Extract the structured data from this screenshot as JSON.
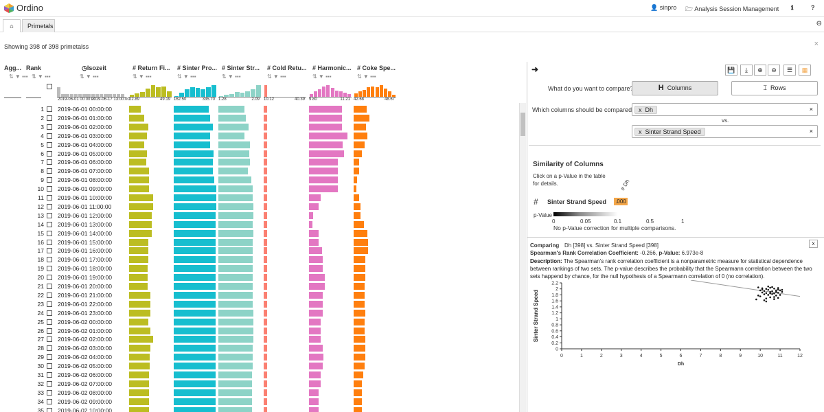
{
  "app": {
    "title": "Ordino",
    "user": "sinpro",
    "session": "Analysis Session Management",
    "info_icon": "info-icon",
    "help": "?"
  },
  "tabs": {
    "home_icon": "home-icon",
    "primetals": "Primetals"
  },
  "status": {
    "showing": "Showing 398 of 398 primetalss"
  },
  "columns": {
    "agg": "Agg...",
    "rank": "Rank",
    "isozeit": "Isozeit",
    "return": "Return Fi...",
    "sinter_prod": "Sinter Pro...",
    "sinter_str": "Sinter Str...",
    "cold_ret": "Cold Retu...",
    "harmonic": "Harmonic...",
    "coke": "Coke Spe...",
    "sub": "⇅ ▼ ▪▪▪"
  },
  "ranges": {
    "isozeit": [
      "2019-06-01 00:00:00",
      "2019-06-17 13:00:00"
    ],
    "return": [
      "22.89",
      "49.19"
    ],
    "sinter_prod": [
      "162.50",
      "335.70"
    ],
    "sinter_str": [
      "1.28",
      "2.09"
    ],
    "cold_ret": [
      "10.12",
      "40.39"
    ],
    "harmonic": [
      "9.80",
      "11.21"
    ],
    "coke": [
      "42.68",
      "48.67"
    ]
  },
  "colors": {
    "return": "#bcbd22",
    "sinter_prod": "#17becf",
    "sinter_str": "#8dd3c7",
    "cold_ret": "#fb8072",
    "harmonic": "#e377c2",
    "coke": "#ff7f0e",
    "pvalue_cell": "#f3a649"
  },
  "rows": [
    {
      "rank": "1",
      "date": "2019-06-01 00:00:00",
      "v": [
        0.27,
        0.82,
        0.62,
        0.08,
        0.77,
        0.31
      ]
    },
    {
      "rank": "2",
      "date": "2019-06-01 01:00:00",
      "v": [
        0.36,
        0.86,
        0.65,
        0.08,
        0.77,
        0.37
      ]
    },
    {
      "rank": "3",
      "date": "2019-06-01 02:00:00",
      "v": [
        0.45,
        0.92,
        0.71,
        0.08,
        0.77,
        0.29
      ]
    },
    {
      "rank": "4",
      "date": "2019-06-01 03:00:00",
      "v": [
        0.42,
        0.86,
        0.62,
        0.08,
        0.9,
        0.32
      ]
    },
    {
      "rank": "5",
      "date": "2019-06-01 04:00:00",
      "v": [
        0.36,
        0.86,
        0.74,
        0.08,
        0.79,
        0.25
      ]
    },
    {
      "rank": "6",
      "date": "2019-06-01 05:00:00",
      "v": [
        0.42,
        0.94,
        0.72,
        0.08,
        0.82,
        0.2
      ]
    },
    {
      "rank": "7",
      "date": "2019-06-01 06:00:00",
      "v": [
        0.4,
        0.92,
        0.74,
        0.08,
        0.67,
        0.13
      ]
    },
    {
      "rank": "8",
      "date": "2019-06-01 07:00:00",
      "v": [
        0.46,
        0.92,
        0.69,
        0.08,
        0.68,
        0.13
      ]
    },
    {
      "rank": "9",
      "date": "2019-06-01 08:00:00",
      "v": [
        0.46,
        0.95,
        0.77,
        0.08,
        0.68,
        0.08
      ]
    },
    {
      "rank": "10",
      "date": "2019-06-01 09:00:00",
      "v": [
        0.46,
        1.0,
        0.8,
        0.08,
        0.67,
        0.06
      ]
    },
    {
      "rank": "11",
      "date": "2019-06-01 10:00:00",
      "v": [
        0.56,
        1.0,
        0.8,
        0.08,
        0.28,
        0.13
      ]
    },
    {
      "rank": "12",
      "date": "2019-06-01 11:00:00",
      "v": [
        0.56,
        1.0,
        0.82,
        0.08,
        0.23,
        0.16
      ]
    },
    {
      "rank": "13",
      "date": "2019-06-01 12:00:00",
      "v": [
        0.54,
        0.99,
        0.82,
        0.08,
        0.09,
        0.16
      ]
    },
    {
      "rank": "14",
      "date": "2019-06-01 13:00:00",
      "v": [
        0.54,
        0.98,
        0.81,
        0.08,
        0.08,
        0.24
      ]
    },
    {
      "rank": "15",
      "date": "2019-06-01 14:00:00",
      "v": [
        0.54,
        0.98,
        0.82,
        0.08,
        0.22,
        0.32
      ]
    },
    {
      "rank": "16",
      "date": "2019-06-01 15:00:00",
      "v": [
        0.45,
        0.98,
        0.8,
        0.08,
        0.22,
        0.34
      ]
    },
    {
      "rank": "17",
      "date": "2019-06-01 16:00:00",
      "v": [
        0.45,
        0.98,
        0.8,
        0.08,
        0.3,
        0.34
      ]
    },
    {
      "rank": "18",
      "date": "2019-06-01 17:00:00",
      "v": [
        0.45,
        0.98,
        0.8,
        0.08,
        0.32,
        0.28
      ]
    },
    {
      "rank": "19",
      "date": "2019-06-01 18:00:00",
      "v": [
        0.43,
        0.98,
        0.8,
        0.08,
        0.32,
        0.27
      ]
    },
    {
      "rank": "20",
      "date": "2019-06-01 19:00:00",
      "v": [
        0.43,
        0.98,
        0.8,
        0.08,
        0.37,
        0.27
      ]
    },
    {
      "rank": "21",
      "date": "2019-06-01 20:00:00",
      "v": [
        0.43,
        0.98,
        0.8,
        0.08,
        0.37,
        0.25
      ]
    },
    {
      "rank": "22",
      "date": "2019-06-01 21:00:00",
      "v": [
        0.5,
        0.98,
        0.8,
        0.08,
        0.32,
        0.25
      ]
    },
    {
      "rank": "23",
      "date": "2019-06-01 22:00:00",
      "v": [
        0.5,
        0.98,
        0.8,
        0.08,
        0.32,
        0.25
      ]
    },
    {
      "rank": "24",
      "date": "2019-06-01 23:00:00",
      "v": [
        0.5,
        0.98,
        0.82,
        0.08,
        0.32,
        0.27
      ]
    },
    {
      "rank": "25",
      "date": "2019-06-02 00:00:00",
      "v": [
        0.45,
        0.98,
        0.82,
        0.08,
        0.28,
        0.25
      ]
    },
    {
      "rank": "26",
      "date": "2019-06-02 01:00:00",
      "v": [
        0.5,
        0.98,
        0.82,
        0.08,
        0.28,
        0.25
      ]
    },
    {
      "rank": "27",
      "date": "2019-06-02 02:00:00",
      "v": [
        0.56,
        0.98,
        0.82,
        0.08,
        0.28,
        0.27
      ]
    },
    {
      "rank": "28",
      "date": "2019-06-02 03:00:00",
      "v": [
        0.5,
        0.98,
        0.8,
        0.08,
        0.32,
        0.27
      ]
    },
    {
      "rank": "29",
      "date": "2019-06-02 04:00:00",
      "v": [
        0.48,
        0.98,
        0.8,
        0.08,
        0.34,
        0.27
      ]
    },
    {
      "rank": "30",
      "date": "2019-06-02 05:00:00",
      "v": [
        0.48,
        0.98,
        0.8,
        0.08,
        0.32,
        0.25
      ]
    },
    {
      "rank": "31",
      "date": "2019-06-02 06:00:00",
      "v": [
        0.46,
        0.98,
        0.79,
        0.08,
        0.28,
        0.22
      ]
    },
    {
      "rank": "32",
      "date": "2019-06-02 07:00:00",
      "v": [
        0.46,
        0.98,
        0.79,
        0.08,
        0.28,
        0.2
      ]
    },
    {
      "rank": "33",
      "date": "2019-06-02 08:00:00",
      "v": [
        0.46,
        0.98,
        0.79,
        0.08,
        0.23,
        0.2
      ]
    },
    {
      "rank": "34",
      "date": "2019-06-02 09:00:00",
      "v": [
        0.46,
        0.98,
        0.79,
        0.08,
        0.23,
        0.2
      ]
    },
    {
      "rank": "35",
      "date": "2019-06-02 10:00:00",
      "v": [
        0.46,
        0.98,
        0.79,
        0.08,
        0.23,
        0.2
      ]
    }
  ],
  "panel": {
    "compare_q": "What do you want to compare?",
    "columns_btn": "Columns",
    "rows_btn": "Rows",
    "which_q": "Which columns should be compared?",
    "col1": "Dh",
    "vs": "vs.",
    "col2": "Sinter Strand Speed",
    "sim_title": "Similarity of Columns",
    "click_hint_1": "Click on a p-Value in the table",
    "click_hint_2": "for details.",
    "col_header": "Dh",
    "row_label": "Sinter Strand Speed",
    "pval": ".000",
    "legend_label": "p-Value",
    "ticks": [
      "0",
      "0.05",
      "0.1",
      "0.5",
      "1"
    ],
    "correction_note": "No p-Value correction for multiple comparisons.",
    "comparing": "Comparing",
    "comp_detail": "Dh [398]  vs.  Sinter Strand Speed [398]",
    "coef_label": "Spearman's Rank Correlation Coefficient:",
    "coef_val": "-0.266, ",
    "pv_label": "p-Value:",
    "pv_val": "6.973e-8",
    "desc_label": "Description:",
    "desc_text": "The Spearman's rank correlation coefficient is a nonparametric measure for statistical dependence between rankings of two sets. The p-value describes the probability that the Spearmann correlation between the two sets happend by chance, for the null hypothesis of a Spearmann correlation of 0 (no correlation).",
    "close_x": "x"
  },
  "chart_data": {
    "type": "scatter",
    "xlabel": "Dh",
    "ylabel": "Sinter Strand Speed",
    "xlim": [
      0,
      12
    ],
    "ylim": [
      0,
      2.2
    ],
    "xticks": [
      "0",
      "1",
      "2",
      "3",
      "4",
      "5",
      "6",
      "7",
      "8",
      "9",
      "10",
      "11",
      "12"
    ],
    "yticks": [
      "0",
      "0.2",
      "0.4",
      "0.6",
      "0.8",
      "1",
      "1.2",
      "1.4",
      "1.6",
      "1.8",
      "2",
      "2.2"
    ],
    "trend": {
      "x": [
        6.5,
        12
      ],
      "y": [
        2.3,
        1.75
      ]
    },
    "points": {
      "x": [
        9.9,
        10.1,
        10.3,
        10.5,
        10.7,
        10.9,
        10.0,
        10.2,
        10.4,
        10.6,
        10.8,
        11.0,
        10.1,
        10.3,
        10.5,
        10.7,
        10.9,
        11.1,
        10.2,
        10.4,
        10.6,
        10.8,
        10.0,
        10.5,
        10.9,
        9.8,
        10.3,
        10.7,
        11.0,
        10.4,
        10.6,
        10.2,
        10.8,
        10.1,
        10.9,
        9.9,
        10.5,
        10.7,
        11.1,
        10.3
      ],
      "y": [
        2.05,
        2.02,
        2.0,
        2.04,
        2.01,
        1.98,
        1.95,
        1.93,
        1.97,
        1.92,
        1.9,
        1.95,
        1.88,
        1.86,
        1.9,
        1.85,
        1.87,
        1.9,
        1.82,
        1.8,
        1.83,
        1.78,
        1.75,
        1.72,
        1.7,
        1.65,
        1.68,
        1.73,
        1.8,
        2.08,
        2.06,
        1.62,
        1.95,
        1.99,
        2.03,
        1.78,
        1.85,
        1.66,
        1.97,
        1.58
      ]
    }
  }
}
